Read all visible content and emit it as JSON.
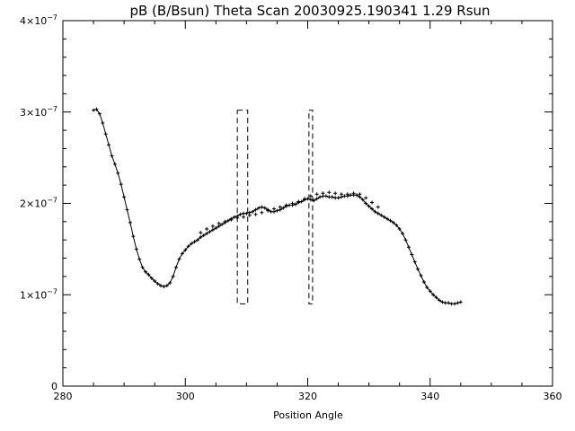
{
  "chart_data": {
    "type": "line",
    "title": "pB (B/Bsun) Theta Scan 20030925.190341 1.29 Rsun",
    "xlabel": "Position Angle",
    "ylabel": "",
    "xlim": [
      280,
      360
    ],
    "ylim": [
      0,
      4e-07
    ],
    "x_ticks": [
      {
        "value": 280,
        "label": "280"
      },
      {
        "value": 300,
        "label": "300"
      },
      {
        "value": 320,
        "label": "320"
      },
      {
        "value": 340,
        "label": "340"
      },
      {
        "value": 360,
        "label": "360"
      }
    ],
    "y_ticks": [
      {
        "value": 0,
        "base": "0",
        "exp": ""
      },
      {
        "value": 1e-07,
        "base": "1×10",
        "exp": "−7"
      },
      {
        "value": 2e-07,
        "base": "2×10",
        "exp": "−7"
      },
      {
        "value": 3e-07,
        "base": "3×10",
        "exp": "−7"
      },
      {
        "value": 4e-07,
        "base": "4×10",
        "exp": "−7"
      }
    ],
    "grid": false,
    "series": [
      {
        "style": "line-with-plus-markers",
        "x": [
          285.0,
          285.5,
          286.0,
          286.5,
          287.0,
          287.5,
          288.0,
          288.5,
          289.0,
          289.5,
          290.0,
          290.5,
          291.0,
          291.5,
          292.0,
          292.5,
          293.0,
          293.5,
          294.0,
          294.5,
          295.0,
          295.5,
          296.0,
          296.5,
          297.0,
          297.5,
          298.0,
          298.5,
          299.0,
          299.5,
          300.0,
          300.5,
          301.0,
          301.5,
          302.0,
          302.5,
          303.0,
          303.5,
          304.0,
          304.5,
          305.0,
          305.5,
          306.0,
          306.5,
          307.0,
          307.5,
          308.0,
          308.5,
          309.0,
          309.5,
          310.0,
          310.5,
          311.0,
          311.5,
          312.0,
          312.5,
          313.0,
          313.5,
          314.0,
          314.5,
          315.0,
          315.5,
          316.0,
          316.5,
          317.0,
          317.5,
          318.0,
          318.5,
          319.0,
          319.5,
          320.0,
          320.5,
          321.0,
          321.5,
          322.0,
          322.5,
          323.0,
          323.5,
          324.0,
          324.5,
          325.0,
          325.5,
          326.0,
          326.5,
          327.0,
          327.5,
          328.0,
          328.5,
          329.0,
          329.5,
          330.0,
          330.5,
          331.0,
          331.5,
          332.0,
          332.5,
          333.0,
          333.5,
          334.0,
          334.5,
          335.0,
          335.5,
          336.0,
          336.5,
          337.0,
          337.5,
          338.0,
          338.5,
          339.0,
          339.5,
          340.0,
          340.5,
          341.0,
          341.5,
          342.0,
          342.5,
          343.0,
          343.5,
          344.0,
          344.5,
          345.0
        ],
        "y": [
          3.02e-07,
          3.03e-07,
          2.98e-07,
          2.88e-07,
          2.76e-07,
          2.64e-07,
          2.52e-07,
          2.43e-07,
          2.33e-07,
          2.21e-07,
          2.07e-07,
          1.93e-07,
          1.79e-07,
          1.64e-07,
          1.5e-07,
          1.39e-07,
          1.3e-07,
          1.25e-07,
          1.22e-07,
          1.18e-07,
          1.15e-07,
          1.12e-07,
          1.1e-07,
          1.09e-07,
          1.1e-07,
          1.13e-07,
          1.2e-07,
          1.3e-07,
          1.39e-07,
          1.45e-07,
          1.49e-07,
          1.53e-07,
          1.56e-07,
          1.58e-07,
          1.6e-07,
          1.63e-07,
          1.65e-07,
          1.67e-07,
          1.69e-07,
          1.71e-07,
          1.73e-07,
          1.75e-07,
          1.77e-07,
          1.79e-07,
          1.81e-07,
          1.83e-07,
          1.85e-07,
          1.86e-07,
          1.88e-07,
          1.89e-07,
          1.89e-07,
          1.9e-07,
          1.91e-07,
          1.93e-07,
          1.95e-07,
          1.96e-07,
          1.95e-07,
          1.93e-07,
          1.91e-07,
          1.91e-07,
          1.92e-07,
          1.93e-07,
          1.95e-07,
          1.97e-07,
          1.98e-07,
          1.98e-07,
          1.99e-07,
          2.01e-07,
          2.02e-07,
          2.04e-07,
          2.05e-07,
          2.04e-07,
          2.03e-07,
          2.05e-07,
          2.07e-07,
          2.08e-07,
          2.08e-07,
          2.07e-07,
          2.07e-07,
          2.06e-07,
          2.06e-07,
          2.07e-07,
          2.08e-07,
          2.08e-07,
          2.09e-07,
          2.09e-07,
          2.09e-07,
          2.07e-07,
          2.04e-07,
          2e-07,
          1.97e-07,
          1.94e-07,
          1.91e-07,
          1.89e-07,
          1.87e-07,
          1.85e-07,
          1.83e-07,
          1.81e-07,
          1.79e-07,
          1.76e-07,
          1.72e-07,
          1.67e-07,
          1.6e-07,
          1.52e-07,
          1.44e-07,
          1.36e-07,
          1.28e-07,
          1.21e-07,
          1.14e-07,
          1.08e-07,
          1.04e-07,
          1e-07,
          9.7e-08,
          9.4e-08,
          9.2e-08,
          9.1e-08,
          9.1e-08,
          9e-08,
          9e-08,
          9.1e-08,
          9.2e-08
        ]
      },
      {
        "style": "plus-markers",
        "x": [
          302.5,
          303.5,
          304.5,
          305.5,
          306.5,
          307.5,
          308.5,
          309.5,
          310.5,
          311.5,
          312.5,
          313.5,
          314.5,
          315.5,
          316.5,
          317.5,
          318.5,
          319.5,
          320.5,
          321.5,
          322.5,
          323.5,
          324.5,
          325.5,
          326.5,
          327.5,
          328.5,
          329.5,
          330.5,
          331.5
        ],
        "y": [
          1.68e-07,
          1.72e-07,
          1.75e-07,
          1.78e-07,
          1.8e-07,
          1.82e-07,
          1.84e-07,
          1.85e-07,
          1.87e-07,
          1.88e-07,
          1.9e-07,
          1.92e-07,
          1.94e-07,
          1.96e-07,
          1.98e-07,
          2e-07,
          2.02e-07,
          2.05e-07,
          2.08e-07,
          2.1e-07,
          2.11e-07,
          2.12e-07,
          2.11e-07,
          2.1e-07,
          2.1e-07,
          2.11e-07,
          2.1e-07,
          2.06e-07,
          2.01e-07,
          1.96e-07
        ]
      }
    ],
    "annotations": [
      {
        "type": "dashed-rect",
        "x0": 308.5,
        "x1": 310.2,
        "y0": 9e-08,
        "y1": 3.02e-07
      },
      {
        "type": "dashed-rect",
        "x0": 320.2,
        "x1": 320.8,
        "y0": 9e-08,
        "y1": 3.02e-07
      }
    ]
  }
}
